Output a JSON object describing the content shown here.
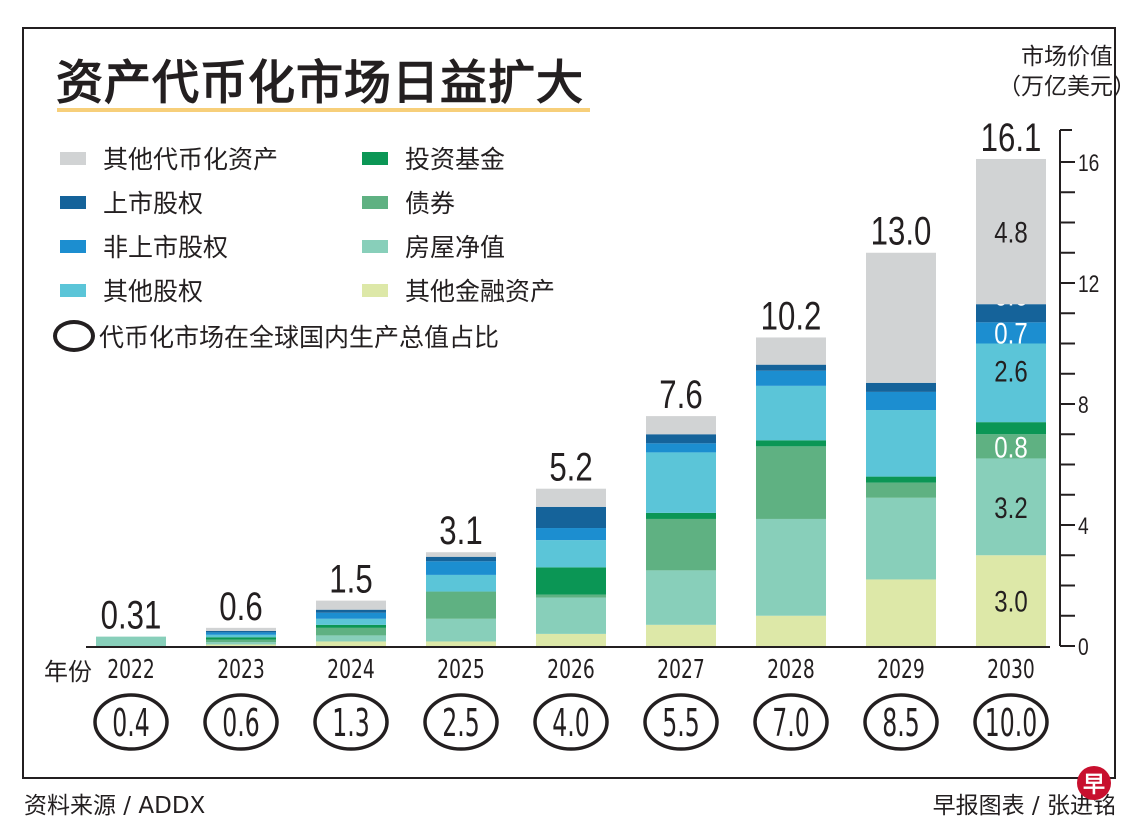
{
  "title": "资产代币化市场日益扩大",
  "axis_title_line1": "市场价值",
  "axis_title_line2": "（万亿美元）",
  "year_label": "年份",
  "oval_legend": "代币化市场在全球国内生产总值占比",
  "source": "资料来源 / ADDX",
  "credit": "早报图表 / 张进铭",
  "logo_text": "早",
  "chart_data": {
    "type": "bar",
    "stacked": true,
    "title": "资产代币化市场日益扩大",
    "ylabel": "市场价值（万亿美元）",
    "xlabel": "年份",
    "ylim": [
      0,
      16
    ],
    "yticks": [
      0,
      4,
      8,
      12,
      16
    ],
    "y_axis_position": "right",
    "grid": false,
    "legend_placement": "top-left",
    "categories": [
      "2022",
      "2023",
      "2024",
      "2025",
      "2026",
      "2027",
      "2028",
      "2029",
      "2030"
    ],
    "totals": [
      "0.31",
      "0.6",
      "1.5",
      "3.1",
      "5.2",
      "7.6",
      "10.2",
      "13.0",
      "16.1"
    ],
    "gdp_share_percent": [
      "0.4",
      "0.6",
      "1.3",
      "2.5",
      "4.0",
      "5.5",
      "7.0",
      "8.5",
      "10.0"
    ],
    "series": [
      {
        "name": "其他金融资产",
        "color": "#dde8a8",
        "values": [
          0,
          0.05,
          0.15,
          0.15,
          0.4,
          0.7,
          1.0,
          2.2,
          3.0
        ],
        "labels": [
          null,
          null,
          null,
          null,
          null,
          null,
          null,
          null,
          "3.0"
        ],
        "label_color": "#231f20"
      },
      {
        "name": "房屋净值",
        "color": "#88cfba",
        "values": [
          0.31,
          0.08,
          0.2,
          0.75,
          1.2,
          1.8,
          3.2,
          2.7,
          3.2
        ],
        "labels": [
          null,
          null,
          null,
          null,
          null,
          null,
          null,
          null,
          "3.2"
        ],
        "label_color": "#231f20"
      },
      {
        "name": "债券",
        "color": "#5fb182",
        "values": [
          0,
          0.08,
          0.25,
          0.9,
          0.1,
          1.7,
          2.4,
          0.5,
          0.8
        ],
        "labels": [
          null,
          null,
          null,
          null,
          null,
          null,
          null,
          null,
          "0.8"
        ],
        "label_color": "#ffffff"
      },
      {
        "name": "投资基金",
        "color": "#0b9655",
        "values": [
          0,
          0.08,
          0.1,
          0,
          0.9,
          0.2,
          0.2,
          0.2,
          0.4
        ],
        "labels": [
          null,
          null,
          null,
          null,
          null,
          null,
          null,
          null,
          "0.4"
        ],
        "label_color": "#ffffff"
      },
      {
        "name": "其他股权",
        "color": "#5bc5d8",
        "values": [
          0,
          0.08,
          0.2,
          0.55,
          0.9,
          2.0,
          1.8,
          2.2,
          2.6
        ],
        "labels": [
          null,
          null,
          null,
          null,
          null,
          null,
          null,
          null,
          "2.6"
        ],
        "label_color": "#231f20"
      },
      {
        "name": "非上市股权",
        "color": "#1c8ed0",
        "values": [
          0,
          0.08,
          0.2,
          0.45,
          0.4,
          0.3,
          0.5,
          0.6,
          0.7
        ],
        "labels": [
          null,
          null,
          null,
          null,
          null,
          null,
          null,
          null,
          "0.7"
        ],
        "label_color": "#ffffff"
      },
      {
        "name": "上市股权",
        "color": "#15639a",
        "values": [
          0,
          0.05,
          0.1,
          0.15,
          0.7,
          0.3,
          0.2,
          0.3,
          0.6
        ],
        "labels": [
          null,
          null,
          null,
          null,
          null,
          null,
          null,
          null,
          "0.6"
        ],
        "label_color": "#ffffff"
      },
      {
        "name": "其他代币化资产",
        "color": "#d1d3d4",
        "values": [
          0,
          0.1,
          0.3,
          0.15,
          0.6,
          0.6,
          0.9,
          4.3,
          4.8
        ],
        "labels": [
          null,
          null,
          null,
          null,
          null,
          null,
          null,
          null,
          "4.8"
        ],
        "label_color": "#231f20"
      }
    ],
    "legend_order": [
      "其他代币化资产",
      "上市股权",
      "非上市股权",
      "其他股权",
      "投资基金",
      "债券",
      "房屋净值",
      "其他金融资产"
    ]
  }
}
